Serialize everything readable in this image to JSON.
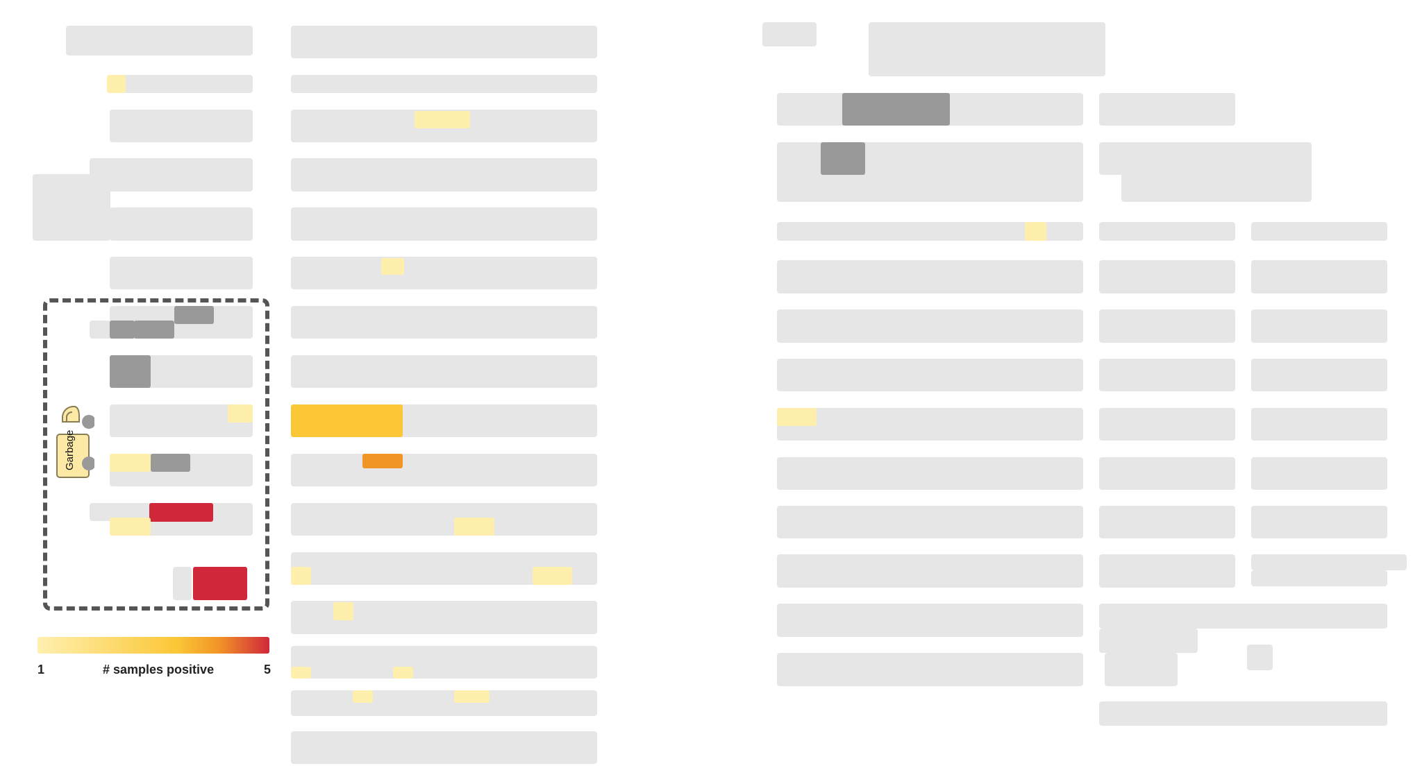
{
  "colors": {
    "placeholder": "#e6e6e6",
    "gray_mark": "#999999",
    "count_1": "#ffefad",
    "count_3": "#fbc737",
    "count_4": "#f29527",
    "count_5": "#d0283a"
  },
  "legend": {
    "min_label": "1",
    "title": "# samples positive",
    "max_label": "5",
    "gradient": [
      "#fff0b0",
      "#fbc737",
      "#f29527",
      "#d0283a"
    ]
  },
  "garbage": {
    "label": "Garbage",
    "icon": "garbage-bag-icon"
  },
  "marks": [
    {
      "name": "mark-col1-row2",
      "kind": "count",
      "samples": 1
    },
    {
      "name": "mark-col2-row3",
      "kind": "count",
      "samples": 1
    },
    {
      "name": "mark-col2-row6",
      "kind": "count",
      "samples": 1
    },
    {
      "name": "mark-col1-row7-a",
      "kind": "gray"
    },
    {
      "name": "mark-col1-row7-b",
      "kind": "gray"
    },
    {
      "name": "mark-col1-row7-c",
      "kind": "gray"
    },
    {
      "name": "mark-col1-row8",
      "kind": "gray"
    },
    {
      "name": "mark-col1-row9",
      "kind": "count",
      "samples": 1
    },
    {
      "name": "mark-col2-row9",
      "kind": "count",
      "samples": 3
    },
    {
      "name": "mark-col1-row10-a",
      "kind": "count",
      "samples": 1
    },
    {
      "name": "mark-col1-row10-b",
      "kind": "gray"
    },
    {
      "name": "mark-col2-row10",
      "kind": "count",
      "samples": 4
    },
    {
      "name": "mark-col1-row11-a",
      "kind": "count",
      "samples": 5
    },
    {
      "name": "mark-col1-row11-b",
      "kind": "count",
      "samples": 1
    },
    {
      "name": "mark-col2-row11",
      "kind": "count",
      "samples": 1
    },
    {
      "name": "mark-col1-row12",
      "kind": "count",
      "samples": 5
    },
    {
      "name": "mark-col2-row12-a",
      "kind": "count",
      "samples": 1
    },
    {
      "name": "mark-col2-row12-b",
      "kind": "count",
      "samples": 1
    },
    {
      "name": "mark-col2-row13",
      "kind": "count",
      "samples": 1
    },
    {
      "name": "mark-col2-row14-a",
      "kind": "count",
      "samples": 1
    },
    {
      "name": "mark-col2-row14-b",
      "kind": "count",
      "samples": 1
    },
    {
      "name": "mark-col2-row15-a",
      "kind": "count",
      "samples": 1
    },
    {
      "name": "mark-col2-row15-b",
      "kind": "count",
      "samples": 1
    },
    {
      "name": "mark-col3-row1-a",
      "kind": "gray"
    },
    {
      "name": "mark-col3-row2",
      "kind": "gray"
    },
    {
      "name": "mark-col3-row3",
      "kind": "count",
      "samples": 1
    },
    {
      "name": "mark-col3-row7",
      "kind": "count",
      "samples": 1
    }
  ]
}
